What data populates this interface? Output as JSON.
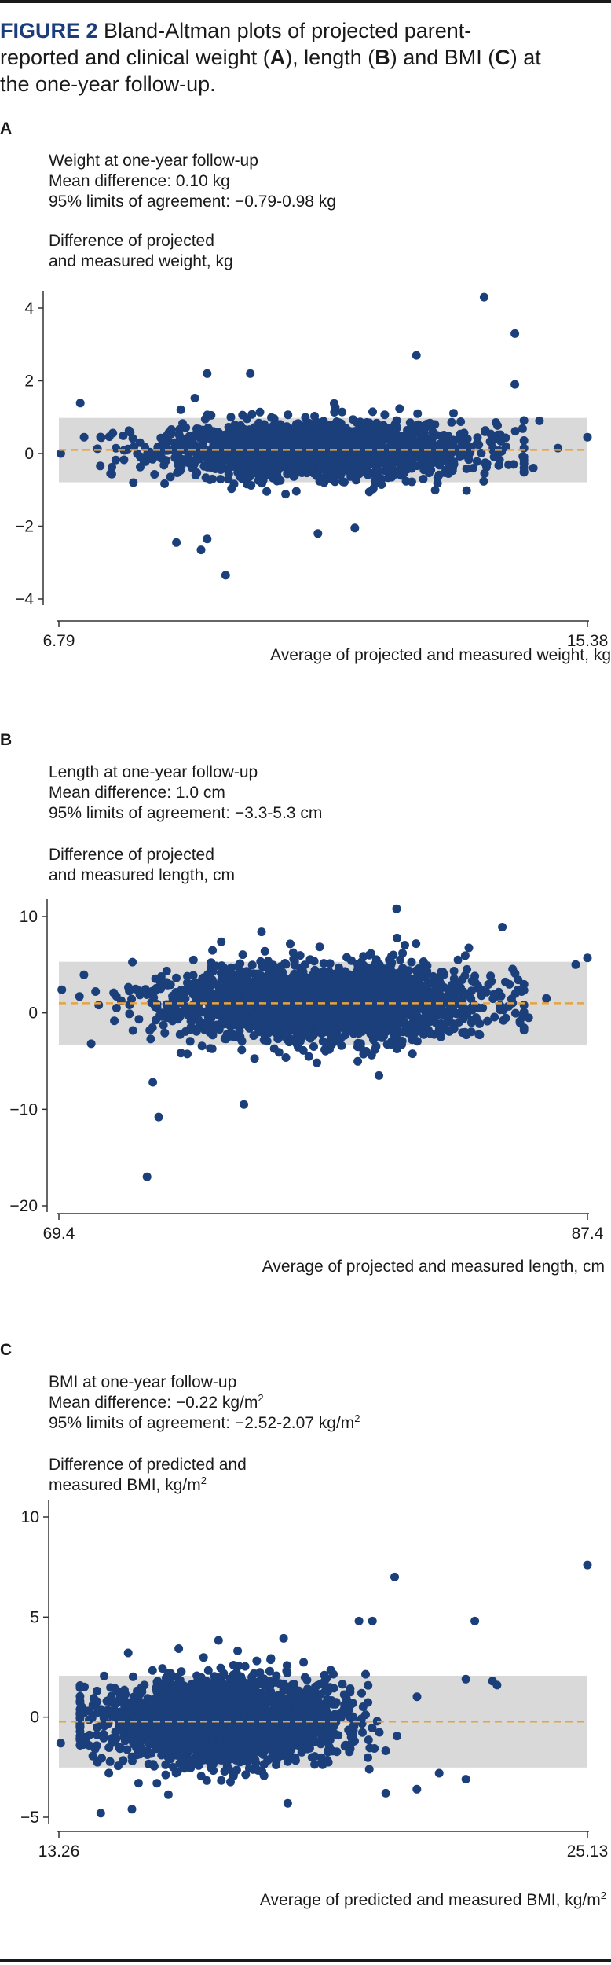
{
  "figure": {
    "number": "FIGURE 2",
    "caption_parts": [
      {
        "t": " Bland-Altman plots of projected parent-reported and clinical weight (",
        "b": false
      },
      {
        "t": "A",
        "b": true
      },
      {
        "t": "), length (",
        "b": false
      },
      {
        "t": "B",
        "b": true
      },
      {
        "t": ") and BMI (",
        "b": false
      },
      {
        "t": "C",
        "b": true
      },
      {
        "t": ") at the one-year follow-up.",
        "b": false
      }
    ]
  },
  "panels": [
    {
      "letter": "A",
      "title": "Weight at one-year follow-up",
      "mean_text": "Mean difference: 0.10 kg",
      "loa_text": "95% limits of agreement: −0.79-0.98 kg",
      "ylabel_line1": "Difference of projected",
      "ylabel_line2": "and measured weight, kg",
      "ylabel_unit_sup": "",
      "xlabel": "Average of projected and measured weight, kg",
      "xlabel_sup": ""
    },
    {
      "letter": "B",
      "title": "Length at one-year follow-up",
      "mean_text": "Mean difference: 1.0 cm",
      "loa_text": "95% limits of agreement: −3.3-5.3 cm",
      "ylabel_line1": "Difference of projected",
      "ylabel_line2": "and measured length, cm",
      "ylabel_unit_sup": "",
      "xlabel": "Average of projected and measured length, cm",
      "xlabel_sup": ""
    },
    {
      "letter": "C",
      "title": "BMI at one-year follow-up",
      "mean_text": "Mean difference: −0.22 kg/m",
      "mean_sup": "2",
      "loa_text": "95% limits of agreement: −2.52-2.07 kg/m",
      "loa_sup": "2",
      "ylabel_line1": "Difference of predicted and",
      "ylabel_line2": "measured BMI, kg/m",
      "ylabel_unit_sup": "2",
      "xlabel": "Average of predicted and measured BMI, kg/m",
      "xlabel_sup": "2"
    }
  ],
  "colors": {
    "points": "#1b3f7a",
    "mean_line": "#e8a33d",
    "loa_band": "#d9d9d9",
    "axis": "#333333"
  },
  "chart_data": [
    {
      "type": "scatter",
      "xlim": [
        6.79,
        15.38
      ],
      "ylim": [
        -4,
        4
      ],
      "x_ticks": [
        "6.79",
        "15.38"
      ],
      "y_ticks": [
        "4",
        "2",
        "0",
        "−2",
        "−4"
      ],
      "y_tick_values": [
        4,
        2,
        0,
        -2,
        -4
      ],
      "mean": 0.1,
      "loa": [
        -0.79,
        0.98
      ],
      "bulk": {
        "x_center": 11.0,
        "x_sd": 1.25,
        "y_sd": 0.38,
        "n": 1900,
        "seed": 11
      },
      "outliers": [
        [
          13.7,
          4.3
        ],
        [
          14.2,
          3.3
        ],
        [
          12.6,
          2.7
        ],
        [
          14.2,
          1.9
        ],
        [
          9.9,
          2.2
        ],
        [
          9.2,
          2.2
        ],
        [
          8.7,
          -2.45
        ],
        [
          9.2,
          -2.35
        ],
        [
          9.1,
          -2.65
        ],
        [
          9.5,
          -3.35
        ],
        [
          11.0,
          -2.2
        ],
        [
          11.6,
          -2.05
        ],
        [
          15.38,
          0.45
        ],
        [
          14.9,
          0.15
        ],
        [
          6.82,
          0.0
        ],
        [
          7.2,
          0.45
        ],
        [
          14.6,
          0.9
        ],
        [
          14.5,
          -0.4
        ],
        [
          8.0,
          -0.8
        ]
      ]
    },
    {
      "type": "scatter",
      "xlim": [
        69.4,
        87.4
      ],
      "ylim": [
        -20,
        10
      ],
      "x_ticks": [
        "69.4",
        "87.4"
      ],
      "y_ticks": [
        "10",
        "0",
        "−10",
        "−20"
      ],
      "y_tick_values": [
        10,
        0,
        -10,
        -20
      ],
      "mean": 1.0,
      "loa": [
        -3.3,
        5.3
      ],
      "bulk": {
        "x_center": 78.4,
        "x_sd": 2.6,
        "y_sd": 1.9,
        "n": 2300,
        "seed": 23
      },
      "outliers": [
        [
          72.4,
          -17.0
        ],
        [
          72.8,
          -10.8
        ],
        [
          72.6,
          -7.2
        ],
        [
          75.7,
          -9.5
        ],
        [
          80.9,
          10.8
        ],
        [
          84.5,
          8.9
        ],
        [
          87.4,
          5.7
        ],
        [
          87.0,
          5.0
        ],
        [
          69.5,
          2.4
        ],
        [
          70.5,
          -3.2
        ],
        [
          70.1,
          1.7
        ],
        [
          80.3,
          -6.5
        ],
        [
          76.3,
          8.4
        ],
        [
          86.0,
          1.5
        ],
        [
          85.4,
          -0.5
        ]
      ]
    },
    {
      "type": "scatter",
      "xlim": [
        13.26,
        25.13
      ],
      "ylim": [
        -5,
        10
      ],
      "x_ticks": [
        "13.26",
        "25.13"
      ],
      "y_ticks": [
        "10",
        "5",
        "0",
        "−5"
      ],
      "y_tick_values": [
        10,
        5,
        0,
        -5
      ],
      "mean": -0.22,
      "loa": [
        -2.52,
        2.07
      ],
      "bulk": {
        "x_center": 16.9,
        "x_sd": 1.3,
        "y_sd": 1.05,
        "n": 2200,
        "seed": 37
      },
      "outliers": [
        [
          25.13,
          7.6
        ],
        [
          20.8,
          7.0
        ],
        [
          22.6,
          4.8
        ],
        [
          20.3,
          4.8
        ],
        [
          20.0,
          4.8
        ],
        [
          23.0,
          1.8
        ],
        [
          23.1,
          1.6
        ],
        [
          22.4,
          1.9
        ],
        [
          22.4,
          -3.1
        ],
        [
          21.3,
          -3.6
        ],
        [
          20.6,
          -3.8
        ],
        [
          14.9,
          -4.6
        ],
        [
          14.2,
          -4.8
        ],
        [
          13.3,
          -1.3
        ],
        [
          18.4,
          -4.3
        ],
        [
          21.8,
          -2.8
        ]
      ]
    }
  ]
}
